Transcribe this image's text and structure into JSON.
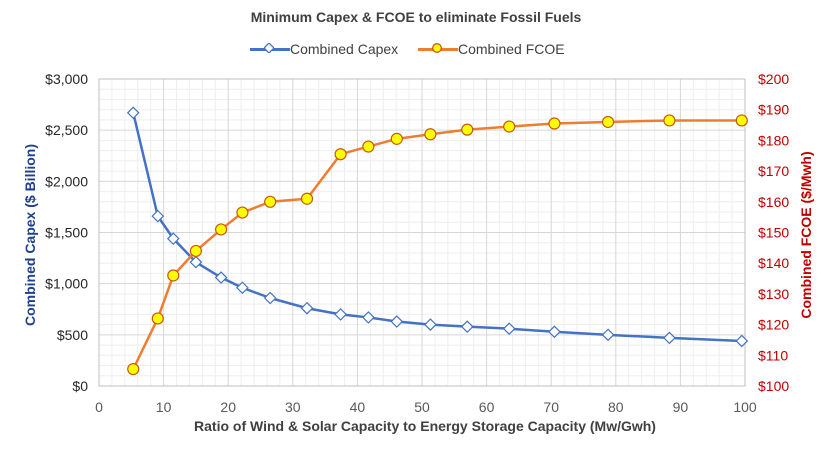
{
  "chart_data": {
    "type": "line",
    "title": "Minimum Capex & FCOE to eliminate Fossil Fuels",
    "xlabel": "Ratio of Wind & Solar Capacity to Energy Storage Capacity (Mw/Gwh)",
    "ylabel_left": "Combined Capex ($ Billion)",
    "ylabel_right": "Combined FCOE ($/Mwh)",
    "xlim": [
      0,
      100
    ],
    "ylim_left": [
      0,
      3000
    ],
    "ylim_right": [
      100,
      200
    ],
    "x_ticks": [
      "0",
      "10",
      "20",
      "30",
      "40",
      "50",
      "60",
      "70",
      "80",
      "90",
      "100"
    ],
    "y_left_ticks": [
      "$0",
      "$500",
      "$1,000",
      "$1,500",
      "$2,000",
      "$2,500",
      "$3,000"
    ],
    "y_right_ticks": [
      "$100",
      "$110",
      "$120",
      "$130",
      "$140",
      "$150",
      "$160",
      "$170",
      "$180",
      "$190",
      "$200"
    ],
    "grid": true,
    "legend_position": "top",
    "series": [
      {
        "name": "Combined Capex",
        "axis": "left",
        "color": "#4472C4",
        "marker": "diamond",
        "x": [
          5.3,
          9.1,
          11.5,
          15,
          18.9,
          22.2,
          26.5,
          32.2,
          37.4,
          41.7,
          46.1,
          51.3,
          57,
          63.5,
          70.5,
          78.8,
          88.3,
          99.5
        ],
        "y": [
          2670,
          1660,
          1440,
          1210,
          1060,
          960,
          860,
          760,
          700,
          670,
          630,
          600,
          580,
          560,
          530,
          500,
          470,
          440
        ]
      },
      {
        "name": "Combined FCOE",
        "axis": "right",
        "color": "#ED7D31",
        "marker": "circle",
        "marker_fill": "#FFFF00",
        "x": [
          5.3,
          9.1,
          11.5,
          15,
          18.9,
          22.2,
          26.5,
          32.2,
          37.4,
          41.7,
          46.1,
          51.3,
          57,
          63.5,
          70.5,
          78.8,
          88.3,
          99.5
        ],
        "y": [
          105.5,
          122,
          136,
          144,
          151,
          156.5,
          160,
          161,
          175.5,
          178,
          180.5,
          182,
          183.5,
          184.5,
          185.5,
          186,
          186.5,
          186.5
        ]
      }
    ]
  }
}
